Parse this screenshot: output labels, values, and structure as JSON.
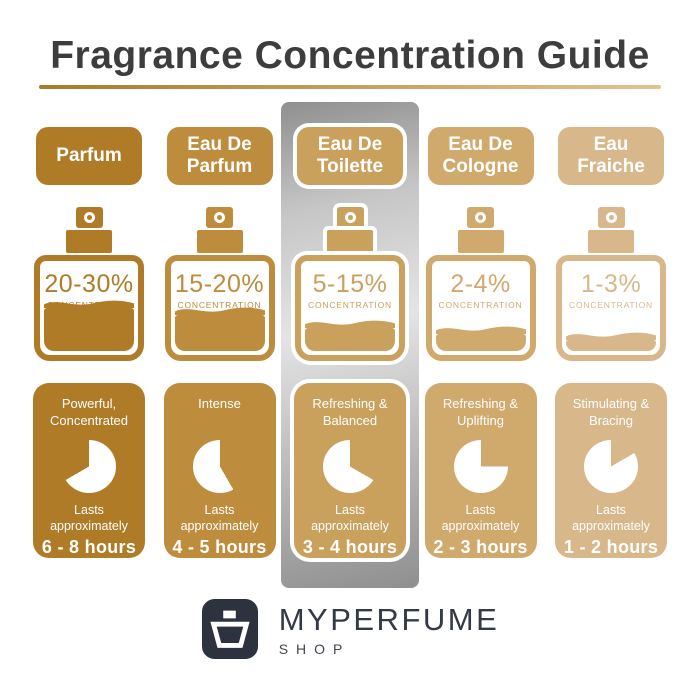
{
  "header": {
    "title": "Fragrance Concentration Guide"
  },
  "theme": {
    "title_ink": "#3d3d3d",
    "rule_from": "#a87b28",
    "rule_to": "#e3c28e",
    "panel_silver_light": "#e4e4e4",
    "panel_silver_dark": "#8f8f8f",
    "logo_bg": "#2d333e",
    "brand_ink": "#333945"
  },
  "columns": [
    {
      "label": "Parfum",
      "color": "#b07b27",
      "highlighted": false,
      "concentration": "20-30%",
      "concentration_label": "CONCENTRATION",
      "fill_percent": 46,
      "description": "Powerful,\nConcentrated",
      "lasts": "Lasts\napproximately",
      "duration": "6 - 8 hours",
      "clock": {
        "start_deg": 240,
        "sweep_deg": 120
      }
    },
    {
      "label": "Eau De\nParfum",
      "color": "#bd8c3c",
      "highlighted": false,
      "concentration": "15-20%",
      "concentration_label": "CONCENTRATION",
      "fill_percent": 38,
      "description": "Intense",
      "lasts": "Lasts\napproximately",
      "duration": "4 - 5 hours",
      "clock": {
        "start_deg": 0,
        "sweep_deg": 150
      }
    },
    {
      "label": "Eau De\nToilette",
      "color": "#caa05d",
      "highlighted": true,
      "concentration": "5-15%",
      "concentration_label": "CONCENTRATION",
      "fill_percent": 24,
      "description": "Refreshing &\nBalanced",
      "lasts": "Lasts\napproximately",
      "duration": "3 - 4 hours",
      "clock": {
        "start_deg": 0,
        "sweep_deg": 120
      }
    },
    {
      "label": "Eau De\nCologne",
      "color": "#d0a96c",
      "highlighted": false,
      "concentration": "2-4%",
      "concentration_label": "CONCENTRATION",
      "fill_percent": 18,
      "description": "Refreshing &\nUplifting",
      "lasts": "Lasts\napproximately",
      "duration": "2 - 3 hours",
      "clock": {
        "start_deg": 0,
        "sweep_deg": 90
      }
    },
    {
      "label": "Eau\nFraiche",
      "color": "#d8b88a",
      "highlighted": false,
      "concentration": "1-3%",
      "concentration_label": "CONCENTRATION",
      "fill_percent": 12,
      "description": "Stimulating &\nBracing",
      "lasts": "Lasts\napproximately",
      "duration": "1 - 2 hours",
      "clock": {
        "start_deg": 0,
        "sweep_deg": 60
      }
    }
  ],
  "footer": {
    "brand": "MYPERFUME",
    "sub": "SHOP"
  }
}
